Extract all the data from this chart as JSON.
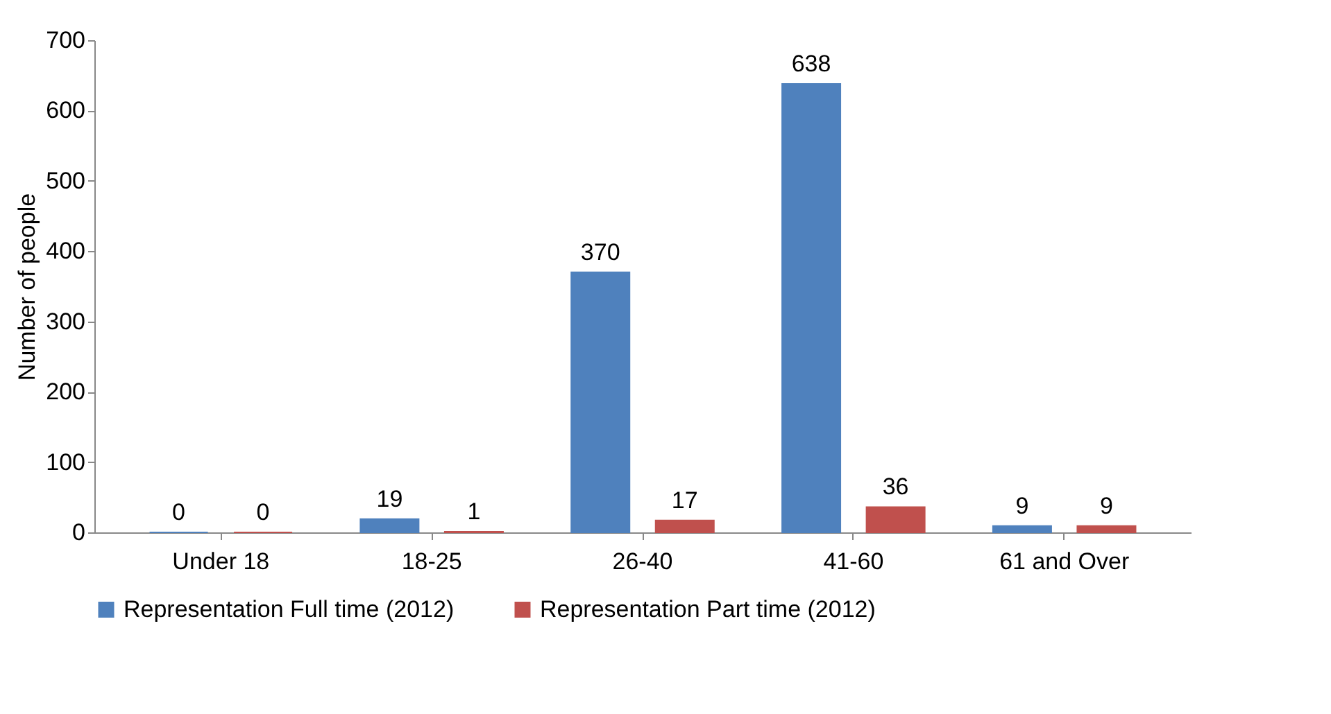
{
  "chart_data": {
    "type": "bar",
    "ylabel": "Number of people",
    "categories": [
      "Under 18",
      "18-25",
      "26-40",
      "41-60",
      "61 and Over"
    ],
    "series": [
      {
        "name": "Representation Full time (2012)",
        "color": "#4f81bd",
        "values": [
          0,
          19,
          370,
          638,
          9
        ]
      },
      {
        "name": "Representation Part time (2012)",
        "color": "#c0504d",
        "values": [
          0,
          1,
          17,
          36,
          9
        ]
      }
    ],
    "ylim": [
      0,
      700
    ],
    "yticks": [
      0,
      100,
      200,
      300,
      400,
      500,
      600,
      700
    ],
    "grid": false,
    "legend": "bottom",
    "data_labels": true
  }
}
